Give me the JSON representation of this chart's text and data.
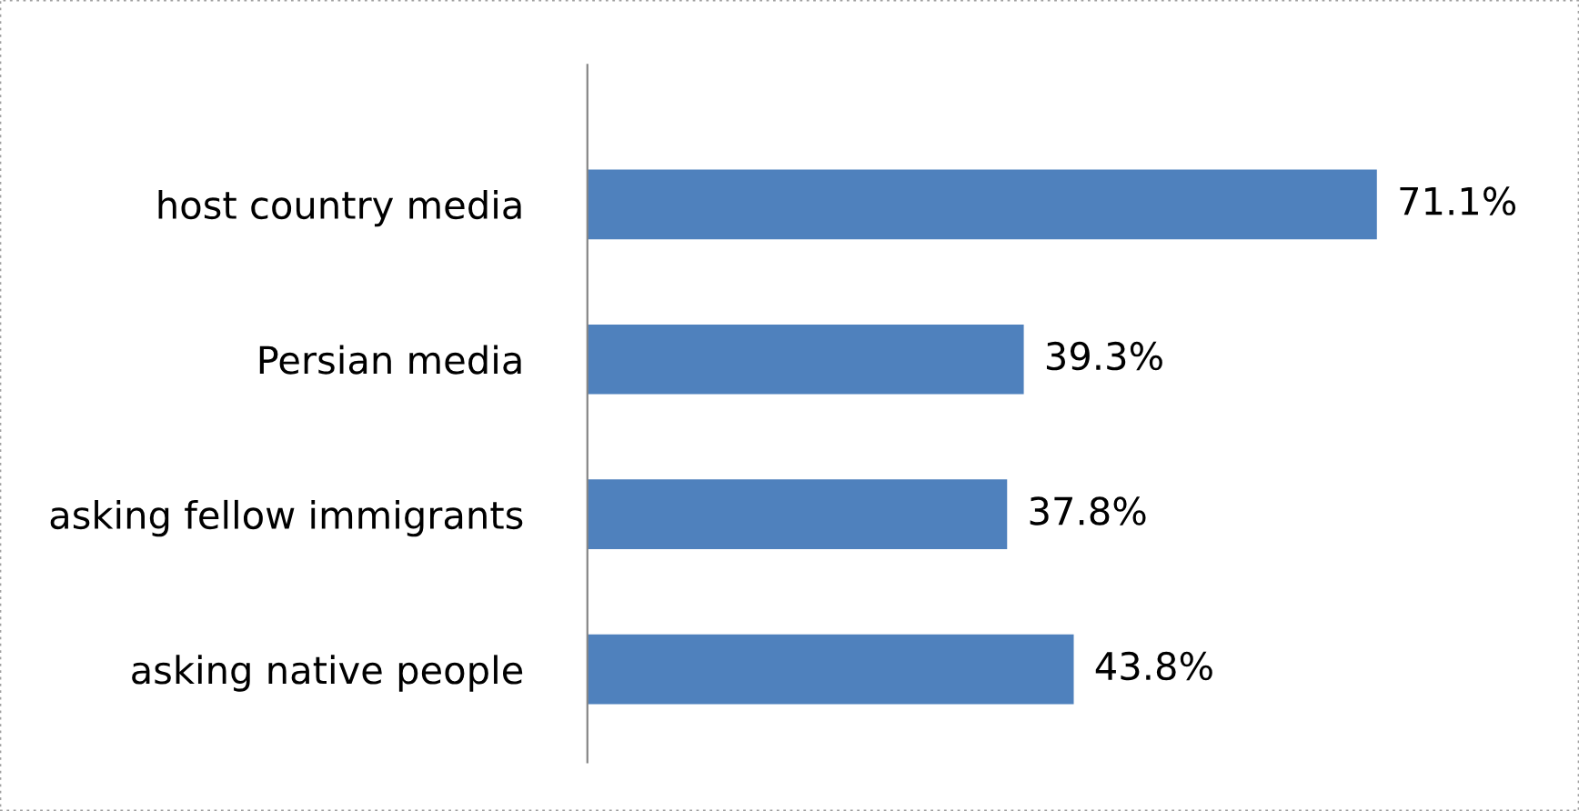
{
  "chart_data": {
    "type": "bar",
    "orientation": "horizontal",
    "categories": [
      "host country media",
      "Persian media",
      "asking fellow immigrants",
      "asking native people"
    ],
    "values": [
      71.1,
      39.3,
      37.8,
      43.8
    ],
    "value_labels": [
      "71.1%",
      "39.3%",
      "37.8%",
      "43.8%"
    ],
    "color": "#4f81bd",
    "grid": false
  }
}
